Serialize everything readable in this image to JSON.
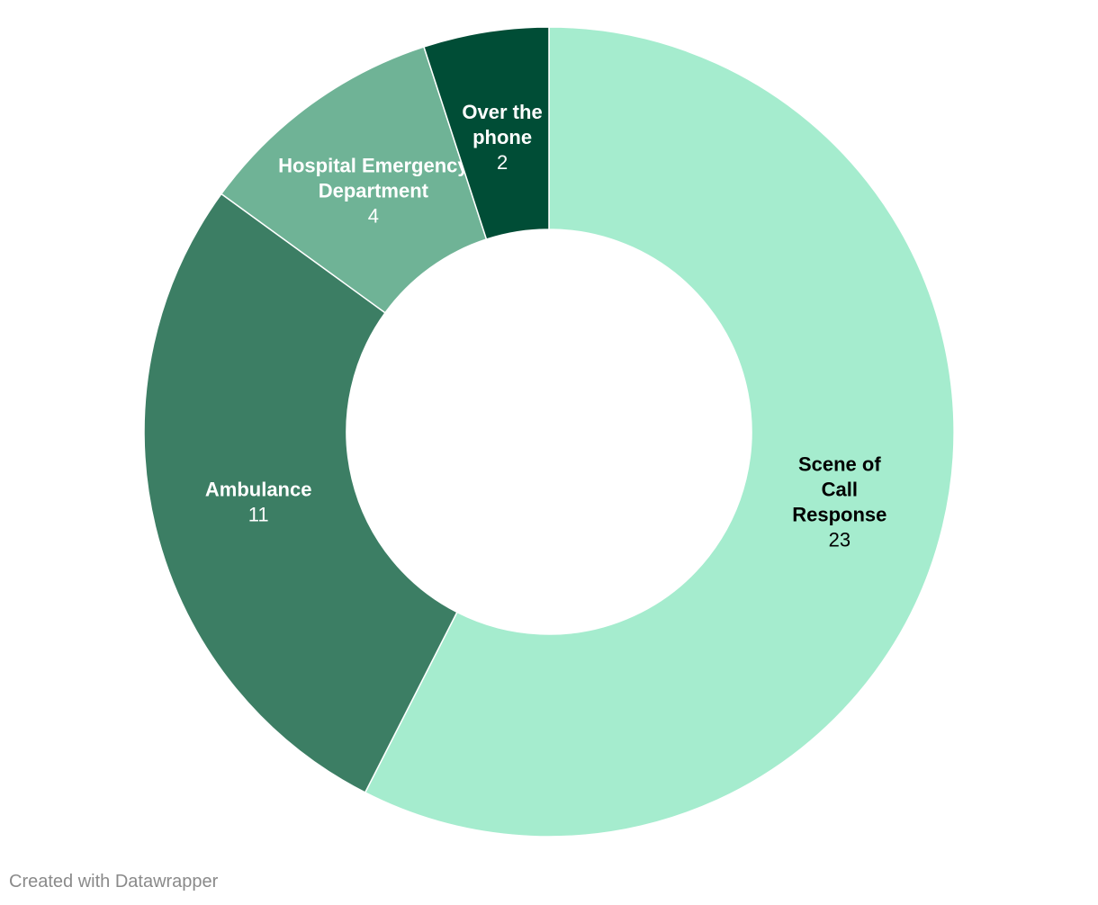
{
  "chart_data": {
    "type": "pie",
    "donut": true,
    "categories": [
      "Scene of Call Response",
      "Ambulance",
      "Hospital Emergency Department",
      "Over the phone"
    ],
    "values": [
      23,
      11,
      4,
      2
    ],
    "slices": [
      {
        "label_lines": [
          "Scene of",
          "Call",
          "Response"
        ],
        "value": 23,
        "color": "#a5ecce",
        "text_color": "#000000"
      },
      {
        "label_lines": [
          "Ambulance"
        ],
        "value": 11,
        "color": "#3c7e64",
        "text_color": "#ffffff"
      },
      {
        "label_lines": [
          "Hospital Emergency",
          "Department"
        ],
        "value": 4,
        "color": "#6fb396",
        "text_color": "#ffffff"
      },
      {
        "label_lines": [
          "Over the",
          "phone"
        ],
        "value": 2,
        "color": "#004d36",
        "text_color": "#ffffff"
      }
    ]
  },
  "credit": "Created with Datawrapper"
}
